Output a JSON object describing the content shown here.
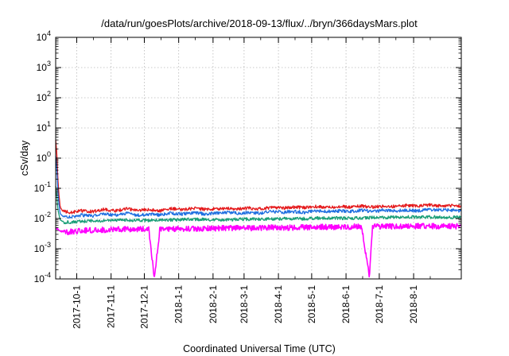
{
  "chart_data": {
    "type": "line",
    "title": "/data/run/goesPlots/archive/2018-09-13/flux/../bryn/366daysMars.plot",
    "xlabel": "Coordinated Universal Time (UTC)",
    "ylabel": "cSv/day",
    "yscale": "log",
    "ylim": [
      0.0001,
      10000
    ],
    "xlim": [
      "2017-09-12",
      "2018-09-13"
    ],
    "grid": true,
    "legend": "none",
    "y_ticks": [
      {
        "mantissa": "10",
        "exp": "-4"
      },
      {
        "mantissa": "10",
        "exp": "-3"
      },
      {
        "mantissa": "10",
        "exp": "-2"
      },
      {
        "mantissa": "10",
        "exp": "-1"
      },
      {
        "mantissa": "10",
        "exp": "0"
      },
      {
        "mantissa": "10",
        "exp": "1"
      },
      {
        "mantissa": "10",
        "exp": "2"
      },
      {
        "mantissa": "10",
        "exp": "3"
      },
      {
        "mantissa": "10",
        "exp": "4"
      }
    ],
    "x_ticks": [
      {
        "date": "2017-10-01",
        "label": "2017-10-1"
      },
      {
        "date": "2017-11-01",
        "label": "2017-11-1"
      },
      {
        "date": "2017-12-01",
        "label": "2017-12-1"
      },
      {
        "date": "2018-01-01",
        "label": "2018-1-1"
      },
      {
        "date": "2018-02-01",
        "label": "2018-2-1"
      },
      {
        "date": "2018-03-01",
        "label": "2018-3-1"
      },
      {
        "date": "2018-04-01",
        "label": "2018-4-1"
      },
      {
        "date": "2018-05-01",
        "label": "2018-5-1"
      },
      {
        "date": "2018-06-01",
        "label": "2018-6-1"
      },
      {
        "date": "2018-07-01",
        "label": "2018-7-1"
      },
      {
        "date": "2018-08-01",
        "label": "2018-8-1"
      }
    ],
    "series": [
      {
        "color": "#e41a1c",
        "points": [
          [
            "2017-09-12",
            4.0
          ],
          [
            "2017-09-13",
            1.5
          ],
          [
            "2017-09-14",
            0.2
          ],
          [
            "2017-09-15",
            0.06
          ],
          [
            "2017-09-16",
            0.025
          ],
          [
            "2017-09-18",
            0.018
          ],
          [
            "2017-09-25",
            0.016
          ],
          [
            "2017-10-05",
            0.018
          ],
          [
            "2017-10-15",
            0.017
          ],
          [
            "2017-10-25",
            0.02
          ],
          [
            "2017-11-05",
            0.018
          ],
          [
            "2017-11-15",
            0.021
          ],
          [
            "2017-11-25",
            0.019
          ],
          [
            "2017-12-05",
            0.02
          ],
          [
            "2017-12-15",
            0.018
          ],
          [
            "2017-12-25",
            0.021
          ],
          [
            "2018-01-05",
            0.02
          ],
          [
            "2018-01-15",
            0.022
          ],
          [
            "2018-01-25",
            0.02
          ],
          [
            "2018-02-05",
            0.021
          ],
          [
            "2018-02-15",
            0.022
          ],
          [
            "2018-02-25",
            0.021
          ],
          [
            "2018-03-05",
            0.022
          ],
          [
            "2018-03-15",
            0.021
          ],
          [
            "2018-03-25",
            0.023
          ],
          [
            "2018-04-05",
            0.022
          ],
          [
            "2018-04-15",
            0.024
          ],
          [
            "2018-04-25",
            0.023
          ],
          [
            "2018-05-05",
            0.025
          ],
          [
            "2018-05-15",
            0.023
          ],
          [
            "2018-05-25",
            0.025
          ],
          [
            "2018-06-05",
            0.024
          ],
          [
            "2018-06-15",
            0.026
          ],
          [
            "2018-06-25",
            0.024
          ],
          [
            "2018-07-05",
            0.026
          ],
          [
            "2018-07-15",
            0.025
          ],
          [
            "2018-07-25",
            0.027
          ],
          [
            "2018-08-05",
            0.026
          ],
          [
            "2018-08-15",
            0.028
          ],
          [
            "2018-08-25",
            0.026
          ],
          [
            "2018-09-05",
            0.027
          ],
          [
            "2018-09-13",
            0.026
          ]
        ]
      },
      {
        "color": "#1f6fe0",
        "points": [
          [
            "2017-09-12",
            1.2
          ],
          [
            "2017-09-13",
            0.5
          ],
          [
            "2017-09-14",
            0.08
          ],
          [
            "2017-09-15",
            0.03
          ],
          [
            "2017-09-16",
            0.015
          ],
          [
            "2017-09-18",
            0.012
          ],
          [
            "2017-09-25",
            0.011
          ],
          [
            "2017-10-05",
            0.013
          ],
          [
            "2017-10-15",
            0.012
          ],
          [
            "2017-10-25",
            0.014
          ],
          [
            "2017-11-05",
            0.013
          ],
          [
            "2017-11-15",
            0.015
          ],
          [
            "2017-11-25",
            0.013
          ],
          [
            "2017-12-05",
            0.014
          ],
          [
            "2017-12-15",
            0.013
          ],
          [
            "2017-12-25",
            0.015
          ],
          [
            "2018-01-05",
            0.014
          ],
          [
            "2018-01-15",
            0.016
          ],
          [
            "2018-01-25",
            0.014
          ],
          [
            "2018-02-05",
            0.015
          ],
          [
            "2018-02-15",
            0.016
          ],
          [
            "2018-02-25",
            0.015
          ],
          [
            "2018-03-05",
            0.016
          ],
          [
            "2018-03-15",
            0.015
          ],
          [
            "2018-03-25",
            0.017
          ],
          [
            "2018-04-05",
            0.016
          ],
          [
            "2018-04-15",
            0.017
          ],
          [
            "2018-04-25",
            0.016
          ],
          [
            "2018-05-05",
            0.018
          ],
          [
            "2018-05-15",
            0.017
          ],
          [
            "2018-05-25",
            0.018
          ],
          [
            "2018-06-05",
            0.017
          ],
          [
            "2018-06-15",
            0.019
          ],
          [
            "2018-06-25",
            0.017
          ],
          [
            "2018-07-05",
            0.019
          ],
          [
            "2018-07-15",
            0.018
          ],
          [
            "2018-07-25",
            0.019
          ],
          [
            "2018-08-05",
            0.018
          ],
          [
            "2018-08-15",
            0.02
          ],
          [
            "2018-08-25",
            0.019
          ],
          [
            "2018-09-05",
            0.019
          ],
          [
            "2018-09-13",
            0.018
          ]
        ]
      },
      {
        "color": "#1a9e77",
        "points": [
          [
            "2017-09-12",
            0.12
          ],
          [
            "2017-09-13",
            0.06
          ],
          [
            "2017-09-14",
            0.02
          ],
          [
            "2017-09-16",
            0.009
          ],
          [
            "2017-09-20",
            0.0075
          ],
          [
            "2017-10-05",
            0.008
          ],
          [
            "2017-10-25",
            0.0085
          ],
          [
            "2017-11-15",
            0.009
          ],
          [
            "2017-12-05",
            0.0085
          ],
          [
            "2017-12-25",
            0.009
          ],
          [
            "2018-01-15",
            0.0095
          ],
          [
            "2018-02-05",
            0.009
          ],
          [
            "2018-02-25",
            0.0095
          ],
          [
            "2018-03-15",
            0.0095
          ],
          [
            "2018-04-05",
            0.01
          ],
          [
            "2018-04-25",
            0.0098
          ],
          [
            "2018-05-15",
            0.0105
          ],
          [
            "2018-06-05",
            0.0102
          ],
          [
            "2018-06-25",
            0.0108
          ],
          [
            "2018-07-15",
            0.011
          ],
          [
            "2018-08-05",
            0.0112
          ],
          [
            "2018-08-25",
            0.0112
          ],
          [
            "2018-09-13",
            0.0108
          ]
        ]
      },
      {
        "color": "#ff00ff",
        "points": [
          [
            "2017-09-12",
            0.005
          ],
          [
            "2017-09-15",
            0.004
          ],
          [
            "2017-09-20",
            0.0035
          ],
          [
            "2017-10-05",
            0.004
          ],
          [
            "2017-10-25",
            0.0042
          ],
          [
            "2017-11-15",
            0.0045
          ],
          [
            "2017-12-05",
            0.0044
          ],
          [
            "2017-12-10",
            0.0001
          ],
          [
            "2017-12-15",
            0.0045
          ],
          [
            "2018-01-05",
            0.0046
          ],
          [
            "2018-01-25",
            0.0047
          ],
          [
            "2018-02-15",
            0.0048
          ],
          [
            "2018-03-05",
            0.0048
          ],
          [
            "2018-03-25",
            0.005
          ],
          [
            "2018-04-15",
            0.005
          ],
          [
            "2018-05-05",
            0.0052
          ],
          [
            "2018-05-25",
            0.0053
          ],
          [
            "2018-06-15",
            0.0054
          ],
          [
            "2018-06-22",
            0.00012
          ],
          [
            "2018-06-25",
            0.0054
          ],
          [
            "2018-07-15",
            0.0055
          ],
          [
            "2018-08-05",
            0.0056
          ],
          [
            "2018-08-25",
            0.0056
          ],
          [
            "2018-09-13",
            0.0055
          ]
        ]
      }
    ]
  }
}
